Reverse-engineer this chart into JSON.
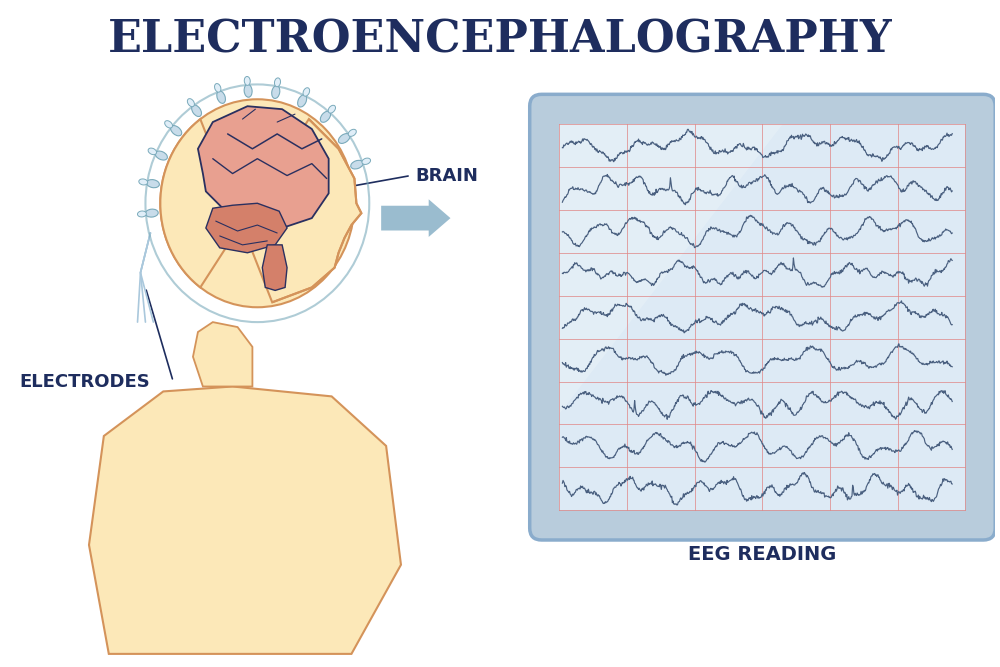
{
  "title": "ELECTROENCEPHALOGRAPHY",
  "title_color": "#1e2d5e",
  "title_fontsize": 32,
  "background_color": "#ffffff",
  "label_brain": "BRAIN",
  "label_electrodes": "ELECTRODES",
  "label_eeg": "EEG READING",
  "label_fontsize": 12,
  "label_color": "#1e2d5e",
  "skin_fill": "#fce8b8",
  "skin_outline": "#d4935a",
  "brain_fill": "#e8a090",
  "brain_outline": "#2a3060",
  "inner_brain_color": "#d4806a",
  "electrode_fill": "#c8dcea",
  "electrode_outline": "#7aaabb",
  "wire_color": "#aac8dc",
  "eeg_outer_fill": "#b8ccdc",
  "eeg_outer_border": "#8aaccc",
  "eeg_inner_fill": "#ddeaf5",
  "eeg_grid_color": "#e08888",
  "eeg_line_color": "#4a6080",
  "arrow_fill": "#9abccf",
  "num_eeg_rows": 9,
  "num_eeg_cols": 6
}
